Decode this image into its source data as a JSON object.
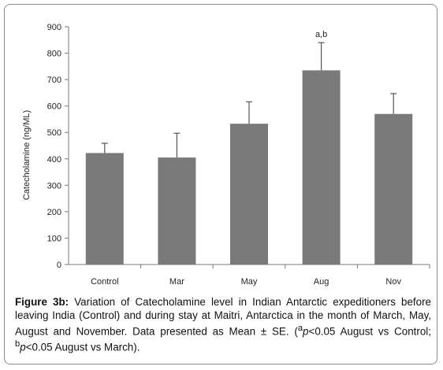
{
  "chart_data": {
    "type": "bar",
    "categories": [
      "Control",
      "Mar",
      "May",
      "Aug",
      "Nov"
    ],
    "values": [
      422,
      405,
      533,
      735,
      570
    ],
    "errors": [
      37,
      92,
      83,
      105,
      77
    ],
    "annotations": [
      {
        "category": "Aug",
        "text": "a,b"
      }
    ],
    "ylabel": "Catecholamine (ng/ML)",
    "xlabel": "",
    "ylim": [
      0,
      900
    ],
    "yticks": [
      "0",
      "100",
      "200",
      "300",
      "400",
      "500",
      "600",
      "700",
      "800",
      "900"
    ],
    "grid": false,
    "bar_color": "#7a7a7a"
  },
  "caption": {
    "label": "Figure 3b:",
    "text": "Variation of Catecholamine level in Indian Antarctic expeditioners before leaving India (Control) and during stay at Maitri, Antarctica in the month of March, May, August and November. Data presented as Mean ± SE. (",
    "sup_a": "a",
    "p1": "p",
    "mid": "<0.05 August vs Control; ",
    "sup_b": "b",
    "p2": "p",
    "end": "<0.05 August vs March)."
  }
}
